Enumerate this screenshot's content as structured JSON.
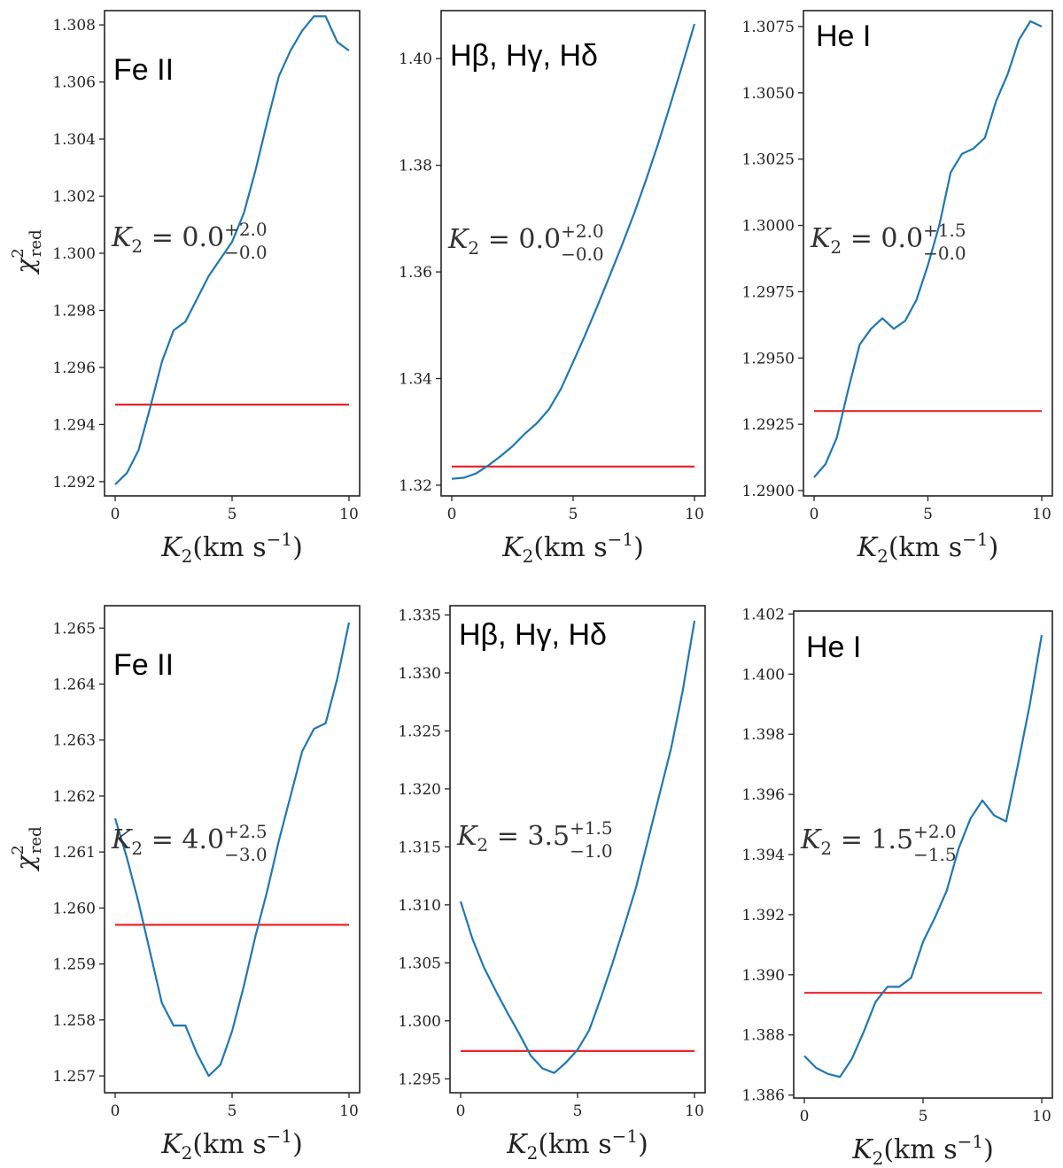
{
  "chart_data": [
    {
      "type": "line",
      "title": "Fe II",
      "xlabel": "K2(km s-1)",
      "ylabel": "χ2red",
      "xlim": [
        0,
        10
      ],
      "ylim": [
        1.2915,
        1.3085
      ],
      "xticks": [
        0,
        5,
        10
      ],
      "yticks": [
        1.292,
        1.294,
        1.296,
        1.298,
        1.3,
        1.302,
        1.304,
        1.306,
        1.308
      ],
      "ytick_decimals": 3,
      "x": [
        0,
        0.5,
        1,
        1.5,
        2,
        2.5,
        3,
        3.5,
        4,
        4.5,
        5,
        5.5,
        6,
        6.5,
        7,
        7.5,
        8,
        8.5,
        9,
        9.5,
        10
      ],
      "series": [
        {
          "name": "chi2_red",
          "values": [
            1.2919,
            1.2923,
            1.2931,
            1.2946,
            1.2962,
            1.2973,
            1.2976,
            1.2984,
            1.2992,
            1.2998,
            1.3004,
            1.3014,
            1.3029,
            1.3046,
            1.3062,
            1.3071,
            1.3078,
            1.3083,
            1.3083,
            1.3074,
            1.3071
          ]
        }
      ],
      "threshold": 1.2947,
      "annotation": {
        "base": "K",
        "sub": "2",
        "eq": " = ",
        "value": "0.0",
        "plus": "+2.0",
        "minus": "−0.0"
      }
    },
    {
      "type": "line",
      "title": "Hβ, Hγ, Hδ",
      "xlabel": "K2(km s-1)",
      "ylabel": "",
      "xlim": [
        0,
        10
      ],
      "ylim": [
        1.318,
        1.409
      ],
      "xticks": [
        0,
        5,
        10
      ],
      "yticks": [
        1.32,
        1.34,
        1.36,
        1.38,
        1.4
      ],
      "ytick_decimals": 2,
      "x": [
        0,
        0.5,
        1,
        1.5,
        2,
        2.5,
        3,
        3.5,
        4,
        4.5,
        5,
        5.5,
        6,
        6.5,
        7,
        7.5,
        8,
        8.5,
        9,
        9.5,
        10
      ],
      "series": [
        {
          "name": "chi2_red",
          "values": [
            1.3212,
            1.3214,
            1.3222,
            1.3237,
            1.3254,
            1.3273,
            1.3296,
            1.3316,
            1.3342,
            1.3381,
            1.3431,
            1.3482,
            1.3536,
            1.3592,
            1.3649,
            1.3708,
            1.3772,
            1.384,
            1.3913,
            1.3988,
            1.4065
          ]
        }
      ],
      "threshold": 1.3235,
      "annotation": {
        "base": "K",
        "sub": "2",
        "eq": " = ",
        "value": "0.0",
        "plus": "+2.0",
        "minus": "−0.0"
      }
    },
    {
      "type": "line",
      "title": "He I",
      "xlabel": "K2(km s-1)",
      "ylabel": "",
      "xlim": [
        0,
        10
      ],
      "ylim": [
        1.2898,
        1.3081
      ],
      "xticks": [
        0,
        5,
        10
      ],
      "yticks": [
        1.29,
        1.2925,
        1.295,
        1.2975,
        1.3,
        1.3025,
        1.305,
        1.3075
      ],
      "ytick_decimals": 4,
      "x": [
        0,
        0.5,
        1,
        1.5,
        2,
        2.5,
        3,
        3.5,
        4,
        4.5,
        5,
        5.5,
        6,
        6.5,
        7,
        7.5,
        8,
        8.5,
        9,
        9.5,
        10
      ],
      "series": [
        {
          "name": "chi2_red",
          "values": [
            1.2905,
            1.291,
            1.292,
            1.2938,
            1.2955,
            1.2961,
            1.2965,
            1.2961,
            1.2964,
            1.2972,
            1.2985,
            1.3,
            1.302,
            1.3027,
            1.3029,
            1.3033,
            1.3047,
            1.3057,
            1.307,
            1.3077,
            1.3075
          ]
        }
      ],
      "threshold": 1.293,
      "annotation": {
        "base": "K",
        "sub": "2",
        "eq": " = ",
        "value": "0.0",
        "plus": "+1.5",
        "minus": "−0.0"
      }
    },
    {
      "type": "line",
      "title": "Fe II",
      "xlabel": "K2(km s-1)",
      "ylabel": "χ2red",
      "xlim": [
        0,
        10
      ],
      "ylim": [
        1.2567,
        1.2654
      ],
      "xticks": [
        0,
        5,
        10
      ],
      "yticks": [
        1.257,
        1.258,
        1.259,
        1.26,
        1.261,
        1.262,
        1.263,
        1.264,
        1.265
      ],
      "ytick_decimals": 3,
      "x": [
        0,
        0.5,
        1,
        1.5,
        2,
        2.5,
        3,
        3.5,
        4,
        4.5,
        5,
        5.5,
        6,
        6.5,
        7,
        7.5,
        8,
        8.5,
        9,
        9.5,
        10
      ],
      "series": [
        {
          "name": "chi2_red",
          "values": [
            1.2616,
            1.2609,
            1.2601,
            1.2592,
            1.2583,
            1.2579,
            1.2579,
            1.2574,
            1.257,
            1.2572,
            1.2578,
            1.2586,
            1.2595,
            1.2603,
            1.2612,
            1.262,
            1.2628,
            1.2632,
            1.2633,
            1.2641,
            1.2651
          ]
        }
      ],
      "threshold": 1.2597,
      "annotation": {
        "base": "K",
        "sub": "2",
        "eq": " = ",
        "value": "4.0",
        "plus": "+2.5",
        "minus": "−3.0"
      }
    },
    {
      "type": "line",
      "title": "Hβ, Hγ, Hδ",
      "xlabel": "K2(km s-1)",
      "ylabel": "",
      "xlim": [
        0,
        10
      ],
      "ylim": [
        1.2938,
        1.3358
      ],
      "xticks": [
        0,
        5,
        10
      ],
      "yticks": [
        1.295,
        1.3,
        1.305,
        1.31,
        1.315,
        1.32,
        1.325,
        1.33,
        1.335
      ],
      "ytick_decimals": 3,
      "x": [
        0,
        0.5,
        1,
        1.5,
        2,
        2.5,
        3,
        3.5,
        4,
        4.5,
        5,
        5.5,
        6,
        6.5,
        7,
        7.5,
        8,
        8.5,
        9,
        9.5,
        10
      ],
      "series": [
        {
          "name": "chi2_red",
          "values": [
            1.3103,
            1.3071,
            1.3046,
            1.3026,
            1.3007,
            1.2989,
            1.297,
            1.2959,
            1.2955,
            1.2964,
            1.2975,
            1.2992,
            1.302,
            1.305,
            1.3082,
            1.3115,
            1.3155,
            1.3195,
            1.3235,
            1.3285,
            1.3345
          ]
        }
      ],
      "threshold": 1.2974,
      "annotation": {
        "base": "K",
        "sub": "2",
        "eq": " = ",
        "value": "3.5",
        "plus": "+1.5",
        "minus": "−1.0"
      }
    },
    {
      "type": "line",
      "title": "He I",
      "xlabel": "K2(km s-1)",
      "ylabel": "",
      "xlim": [
        0,
        10
      ],
      "ylim": [
        1.3859,
        1.4021
      ],
      "xticks": [
        0,
        5,
        10
      ],
      "yticks": [
        1.386,
        1.388,
        1.39,
        1.392,
        1.394,
        1.396,
        1.398,
        1.4,
        1.402
      ],
      "ytick_decimals": 3,
      "x": [
        0,
        0.5,
        1,
        1.5,
        2,
        2.5,
        3,
        3.5,
        4,
        4.5,
        5,
        5.5,
        6,
        6.5,
        7,
        7.5,
        8,
        8.5,
        9,
        9.5,
        10
      ],
      "series": [
        {
          "name": "chi2_red",
          "values": [
            1.3873,
            1.3869,
            1.3867,
            1.3866,
            1.3872,
            1.3881,
            1.3891,
            1.3896,
            1.3896,
            1.3899,
            1.3911,
            1.3919,
            1.3928,
            1.3942,
            1.3952,
            1.3958,
            1.3953,
            1.3951,
            1.397,
            1.399,
            1.4013
          ]
        }
      ],
      "threshold": 1.3894,
      "annotation": {
        "base": "K",
        "sub": "2",
        "eq": " = ",
        "value": "1.5",
        "plus": "+2.0",
        "minus": "−1.5"
      }
    }
  ],
  "axis_text": {
    "x_base": "K",
    "x_sub": "2",
    "x_unit": "(km s",
    "x_exp": "−1",
    "x_close": ")",
    "y_base": "χ",
    "y_sup": "2",
    "y_sub": "red"
  },
  "colors": {
    "curve": "#1f77b4",
    "threshold": "#e8262c"
  }
}
